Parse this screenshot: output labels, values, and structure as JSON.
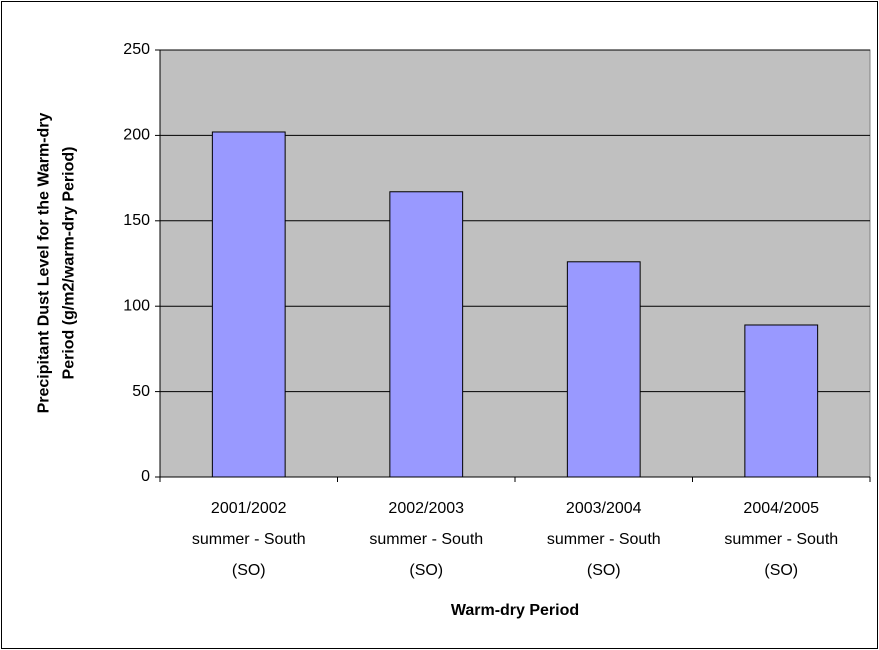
{
  "chart_data": {
    "type": "bar",
    "x_label": "Warm-dry Period",
    "y_label": "Precipitant Dust Level for the Warm-dry\nPeriod (g/m2/warm-dry Period)",
    "categories": [
      "2001/2002\nsummer - South\n(SO)",
      "2002/2003\nsummer - South\n(SO)",
      "2003/2004\nsummer - South\n(SO)",
      "2004/2005\nsummer - South\n(SO)"
    ],
    "values": [
      202,
      167,
      126,
      89
    ],
    "color": "#9999ff",
    "ylim": [
      0,
      250
    ],
    "yticks": [
      0,
      50,
      100,
      150,
      200,
      250
    ],
    "grid": true
  }
}
